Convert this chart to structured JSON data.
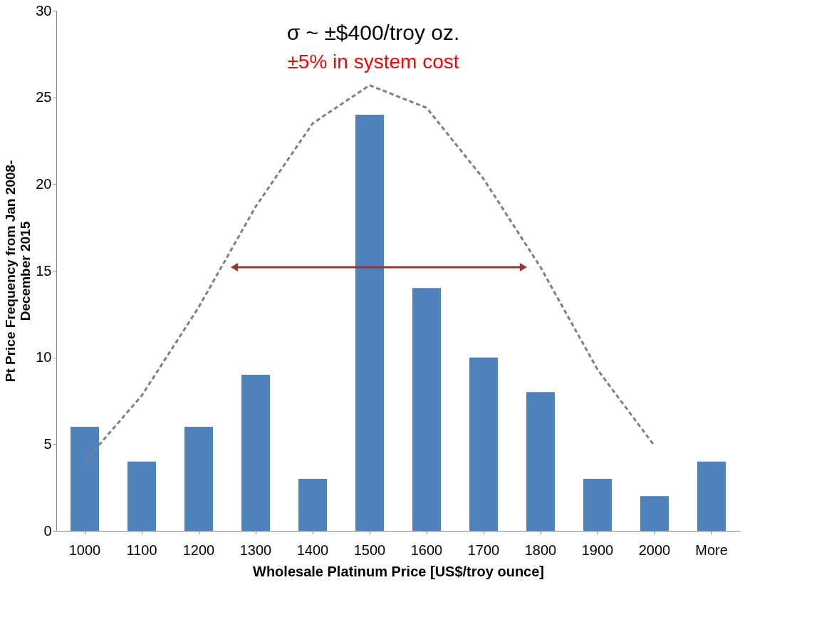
{
  "chart_data": {
    "type": "bar",
    "xlabel": "Wholesale Platinum Price [US$/troy ounce]",
    "ylabel": "Pt Price  Frequency from Jan 2008-\nDecember  2015",
    "categories": [
      "1000",
      "1100",
      "1200",
      "1300",
      "1400",
      "1500",
      "1600",
      "1700",
      "1800",
      "1900",
      "2000",
      "More"
    ],
    "series": [
      {
        "color": "#4f81bd",
        "values": [
          6,
          4,
          6,
          9,
          3,
          24,
          14,
          10,
          8,
          3,
          2,
          4
        ]
      },
      {
        "type": "line",
        "color": "#7f7f7f",
        "line_style": "dashed",
        "marker": "none",
        "values": [
          4.0,
          7.8,
          12.9,
          18.7,
          23.5,
          25.7,
          24.4,
          20.3,
          15.2,
          9.3,
          4.9,
          null
        ]
      }
    ],
    "ylim": [
      0,
      30
    ],
    "yticks": [
      0,
      5,
      10,
      15,
      20,
      25,
      30
    ],
    "annotations": [
      "σ ~ ±$400/troy oz.",
      "±5% in system cost"
    ],
    "grid": false
  }
}
